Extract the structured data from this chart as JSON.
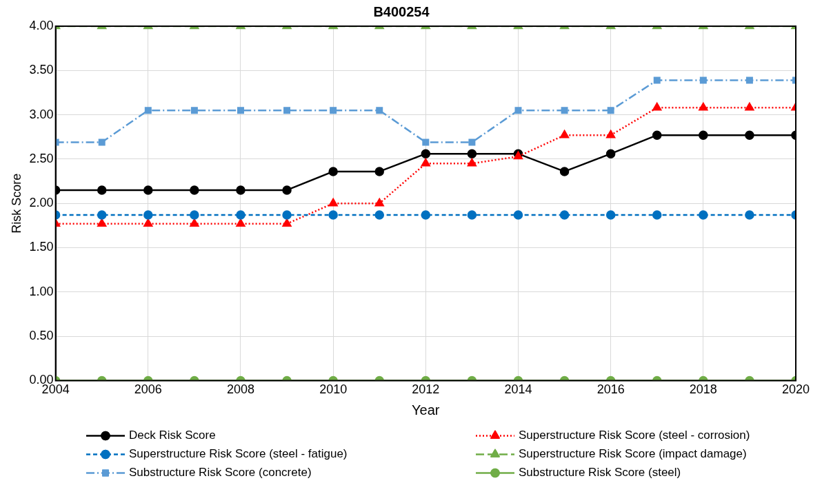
{
  "chart_data": {
    "type": "line",
    "title": "B400254",
    "xlabel": "Year",
    "ylabel": "Risk Score",
    "x": [
      2004,
      2005,
      2006,
      2007,
      2008,
      2009,
      2010,
      2011,
      2012,
      2013,
      2014,
      2015,
      2016,
      2017,
      2018,
      2019,
      2020
    ],
    "xlim": [
      2004,
      2020
    ],
    "xticks": [
      2004,
      2006,
      2008,
      2010,
      2012,
      2014,
      2016,
      2018,
      2020
    ],
    "ylim": [
      0,
      4
    ],
    "yticks": [
      {
        "value": 0,
        "label": "0.00"
      },
      {
        "value": 0.5,
        "label": "0.50"
      },
      {
        "value": 1,
        "label": "1.00"
      },
      {
        "value": 1.5,
        "label": "1.50"
      },
      {
        "value": 2,
        "label": "2.00"
      },
      {
        "value": 2.5,
        "label": "2.50"
      },
      {
        "value": 3,
        "label": "3.00"
      },
      {
        "value": 3.5,
        "label": "3.50"
      },
      {
        "value": 4,
        "label": "4.00"
      }
    ],
    "grid": true,
    "legend": "bottom",
    "series": [
      {
        "name": "Deck Risk Score",
        "color": "#000000",
        "marker": "circle",
        "line_style": "solid",
        "values": [
          2.15,
          2.15,
          2.15,
          2.15,
          2.15,
          2.15,
          2.36,
          2.36,
          2.56,
          2.56,
          2.56,
          2.36,
          2.56,
          2.77,
          2.77,
          2.77,
          2.77
        ]
      },
      {
        "name": "Superstructure Risk Score (steel - corrosion)",
        "color": "#ff0000",
        "marker": "triangle",
        "line_style": "dotted",
        "values": [
          1.77,
          1.77,
          1.77,
          1.77,
          1.77,
          1.77,
          2.0,
          2.0,
          2.45,
          2.45,
          2.53,
          2.77,
          2.77,
          3.08,
          3.08,
          3.08,
          3.08
        ]
      },
      {
        "name": "Superstructure Risk Score (steel - fatigue)",
        "color": "#0070c0",
        "marker": "circle",
        "line_style": "dashed",
        "values": [
          1.87,
          1.87,
          1.87,
          1.87,
          1.87,
          1.87,
          1.87,
          1.87,
          1.87,
          1.87,
          1.87,
          1.87,
          1.87,
          1.87,
          1.87,
          1.87,
          1.87
        ]
      },
      {
        "name": "Superstructure Risk Score (impact damage)",
        "color": "#70ad47",
        "marker": "triangle",
        "line_style": "longdash",
        "values": [
          4,
          4,
          4,
          4,
          4,
          4,
          4,
          4,
          4,
          4,
          4,
          4,
          4,
          4,
          4,
          4,
          4
        ]
      },
      {
        "name": "Substructure Risk Score (concrete)",
        "color": "#5b9bd5",
        "marker": "square",
        "line_style": "dashdot",
        "values": [
          2.69,
          2.69,
          3.05,
          3.05,
          3.05,
          3.05,
          3.05,
          3.05,
          2.69,
          2.69,
          3.05,
          3.05,
          3.05,
          3.39,
          3.39,
          3.39,
          3.39
        ]
      },
      {
        "name": "Substructure Risk Score (steel)",
        "color": "#70ad47",
        "marker": "circle",
        "line_style": "solid",
        "values": [
          0,
          0,
          0,
          0,
          0,
          0,
          0,
          0,
          0,
          0,
          0,
          0,
          0,
          0,
          0,
          0,
          0
        ]
      }
    ]
  }
}
